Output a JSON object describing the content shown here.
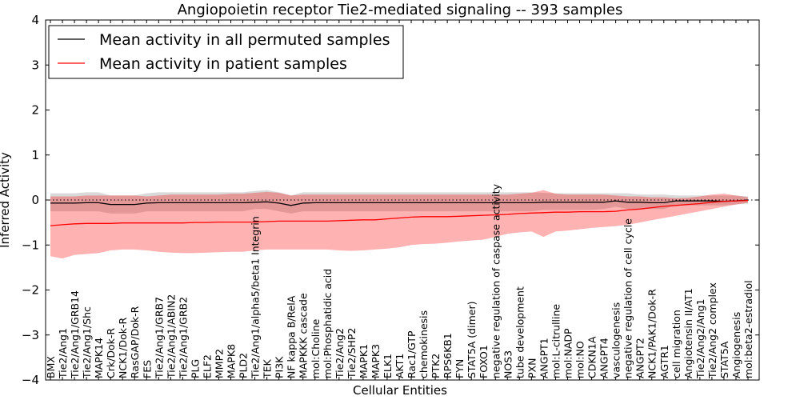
{
  "chart_data": {
    "type": "line",
    "title": "Angiopoietin receptor Tie2-mediated signaling -- 393 samples",
    "xlabel": "Cellular Entities",
    "ylabel": "Inferred Activity",
    "ylim": [
      -4,
      4
    ],
    "yticks": [
      -4,
      -3,
      -2,
      -1,
      0,
      1,
      2,
      3,
      4
    ],
    "grid": false,
    "legend_position": "top-left",
    "reference_line_y": 0,
    "categories": [
      "BMX",
      "Tie2/Ang1",
      "Tie2/Ang1/GRB14",
      "Tie2/Ang1/Shc",
      "MAPK14",
      "Crk/Dok-R",
      "NCK1/Dok-R",
      "RasGAP/Dok-R",
      "FES",
      "Tie2/Ang1/GRB7",
      "Tie2/Ang1/ABIN2",
      "Tie2/Ang1/GRB2",
      "PLG",
      "ELF2",
      "MMP2",
      "MAPK8",
      "PLD2",
      "Tie2/Ang1/alpha5/beta1 Integrin",
      "TEK",
      "PI3K",
      "NF kappa B/RelA",
      "MAPKKK cascade",
      "mol:Choline",
      "mol:Phosphatidic acid",
      "Tie2/Ang2",
      "Tie2/SHP2",
      "MAPK1",
      "MAPK3",
      "ELK1",
      "AKT1",
      "Rac1/GTP",
      "chemokinesis",
      "PTK2",
      "RPS6KB1",
      "FYN",
      "STAT5A (dimer)",
      "FOXO1",
      "negative regulation of caspase activity",
      "NOS3",
      "tube development",
      "PXN",
      "ANGPT1",
      "mol:L-citrulline",
      "mol:NADP",
      "mol:NO",
      "CDKN1A",
      "ANGPT4",
      "vasculogenesis",
      "negative regulation of cell cycle",
      "ANGPT2",
      "NCK1/PAK1/Dok-R",
      "AGTR1",
      "cell migration",
      "Angiotensin II/AT1",
      "Tie2/Ang2/Ang1",
      "Tie2/Ang2 complex",
      "STAT5A",
      "Angiogenesis",
      "mol:beta2-estradiol"
    ],
    "series": [
      {
        "name": "Mean activity in all permuted samples",
        "color": "#000000",
        "values": [
          -0.07,
          -0.07,
          -0.07,
          -0.06,
          -0.06,
          -0.1,
          -0.1,
          -0.1,
          -0.07,
          -0.06,
          -0.06,
          -0.06,
          -0.06,
          -0.06,
          -0.06,
          -0.06,
          -0.06,
          -0.05,
          -0.04,
          -0.07,
          -0.12,
          -0.07,
          -0.06,
          -0.06,
          -0.06,
          -0.06,
          -0.06,
          -0.06,
          -0.06,
          -0.06,
          -0.06,
          -0.06,
          -0.06,
          -0.06,
          -0.06,
          -0.06,
          -0.06,
          -0.06,
          -0.06,
          -0.06,
          -0.06,
          -0.05,
          -0.05,
          -0.05,
          -0.05,
          -0.05,
          -0.05,
          -0.02,
          -0.05,
          -0.05,
          -0.06,
          -0.06,
          -0.02,
          -0.02,
          -0.02,
          -0.02,
          -0.03,
          -0.02,
          0.0
        ],
        "band_lower": [
          -0.25,
          -0.25,
          -0.25,
          -0.25,
          -0.25,
          -0.3,
          -0.3,
          -0.3,
          -0.25,
          -0.25,
          -0.25,
          -0.25,
          -0.25,
          -0.25,
          -0.25,
          -0.25,
          -0.25,
          -0.2,
          -0.2,
          -0.25,
          -0.3,
          -0.25,
          -0.25,
          -0.25,
          -0.25,
          -0.25,
          -0.25,
          -0.25,
          -0.25,
          -0.25,
          -0.25,
          -0.25,
          -0.25,
          -0.25,
          -0.25,
          -0.25,
          -0.25,
          -0.25,
          -0.25,
          -0.25,
          -0.25,
          -0.22,
          -0.22,
          -0.22,
          -0.22,
          -0.22,
          -0.2,
          -0.15,
          -0.2,
          -0.2,
          -0.2,
          -0.2,
          -0.12,
          -0.12,
          -0.12,
          -0.12,
          -0.12,
          -0.1,
          -0.08
        ],
        "band_upper": [
          0.15,
          0.15,
          0.15,
          0.17,
          0.17,
          0.1,
          0.1,
          0.1,
          0.15,
          0.17,
          0.17,
          0.17,
          0.17,
          0.17,
          0.17,
          0.17,
          0.17,
          0.2,
          0.22,
          0.17,
          0.1,
          0.17,
          0.17,
          0.17,
          0.17,
          0.17,
          0.17,
          0.17,
          0.17,
          0.17,
          0.17,
          0.17,
          0.17,
          0.17,
          0.17,
          0.17,
          0.17,
          0.17,
          0.17,
          0.17,
          0.17,
          0.16,
          0.15,
          0.15,
          0.15,
          0.15,
          0.15,
          0.15,
          0.15,
          0.12,
          0.12,
          0.12,
          0.1,
          0.1,
          0.1,
          0.1,
          0.1,
          0.1,
          0.08
        ]
      },
      {
        "name": "Mean activity in patient samples",
        "color": "#ff0000",
        "values": [
          -0.57,
          -0.55,
          -0.53,
          -0.52,
          -0.52,
          -0.52,
          -0.51,
          -0.51,
          -0.51,
          -0.51,
          -0.51,
          -0.51,
          -0.5,
          -0.5,
          -0.49,
          -0.49,
          -0.49,
          -0.49,
          -0.48,
          -0.47,
          -0.47,
          -0.47,
          -0.47,
          -0.47,
          -0.46,
          -0.45,
          -0.44,
          -0.44,
          -0.42,
          -0.4,
          -0.38,
          -0.37,
          -0.37,
          -0.37,
          -0.36,
          -0.35,
          -0.34,
          -0.33,
          -0.32,
          -0.3,
          -0.29,
          -0.28,
          -0.27,
          -0.27,
          -0.26,
          -0.26,
          -0.26,
          -0.25,
          -0.22,
          -0.2,
          -0.17,
          -0.14,
          -0.12,
          -0.1,
          -0.08,
          -0.05,
          -0.03,
          -0.02,
          -0.01
        ],
        "band_lower": [
          -1.25,
          -1.3,
          -1.22,
          -1.2,
          -1.18,
          -1.12,
          -1.1,
          -1.1,
          -1.12,
          -1.15,
          -1.17,
          -1.18,
          -1.18,
          -1.17,
          -1.16,
          -1.15,
          -1.15,
          -1.12,
          -1.1,
          -1.1,
          -1.1,
          -1.1,
          -1.1,
          -1.1,
          -1.12,
          -1.13,
          -1.12,
          -1.1,
          -1.08,
          -1.05,
          -1.0,
          -0.98,
          -0.97,
          -0.95,
          -0.92,
          -0.9,
          -0.88,
          -0.82,
          -0.75,
          -0.72,
          -0.7,
          -0.82,
          -0.7,
          -0.68,
          -0.65,
          -0.62,
          -0.6,
          -0.58,
          -0.55,
          -0.5,
          -0.45,
          -0.4,
          -0.35,
          -0.3,
          -0.25,
          -0.2,
          -0.15,
          -0.1,
          -0.06
        ],
        "band_upper": [
          0.08,
          0.08,
          0.08,
          0.1,
          0.1,
          0.1,
          0.1,
          0.1,
          0.08,
          0.1,
          0.12,
          0.12,
          0.12,
          0.12,
          0.12,
          0.14,
          0.14,
          0.16,
          0.18,
          0.16,
          0.1,
          0.12,
          0.12,
          0.12,
          0.12,
          0.12,
          0.12,
          0.12,
          0.12,
          0.12,
          0.12,
          0.12,
          0.12,
          0.12,
          0.12,
          0.12,
          0.12,
          0.12,
          0.12,
          0.14,
          0.16,
          0.22,
          0.14,
          0.12,
          0.12,
          0.12,
          0.12,
          0.1,
          0.08,
          0.08,
          0.06,
          0.06,
          0.04,
          0.05,
          0.08,
          0.12,
          0.14,
          0.1,
          0.06
        ]
      }
    ]
  }
}
